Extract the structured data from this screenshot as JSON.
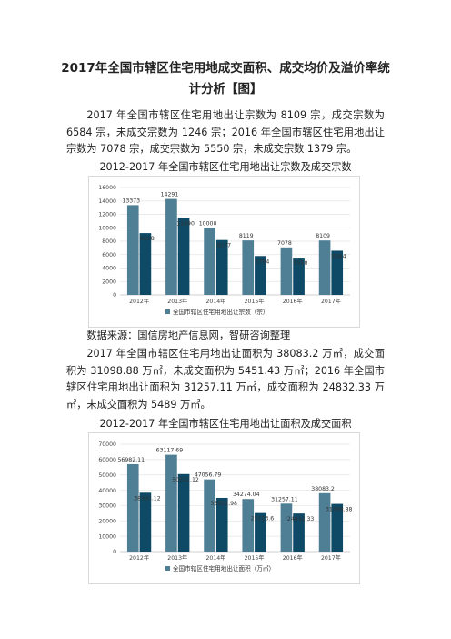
{
  "title_line1": "2017年全国市辖区住宅用地成交面积、成交均价及溢价率统",
  "title_line2": "计分析【图】",
  "para1": "2017 年全国市辖区住宅用地出让宗数为 8109 宗，成交宗数为 6584 宗，未成交宗数为 1246 宗；2016 年全国市辖区住宅用地出让宗数为 7078 宗，成交宗数为 5550 宗，未成交宗数 1379 宗。",
  "caption1": "2012-2017 年全国市辖区住宅用地出让宗数及成交宗数",
  "source": "数据来源：国信房地产信息网，智研咨询整理",
  "para2": "2017 年全国市辖区住宅用地出让面积为 38083.2 万㎡，成交面积为 31098.88 万㎡，未成交面积为 5451.43 万㎡；2016 年全国市辖区住宅用地出让面积为 31257.11 万㎡，成交面积为 24832.33 万㎡，未成交面积为 5489 万㎡。",
  "caption2": "2012-2017 年全国市辖区住宅用地出让面积及成交面积",
  "colors": {
    "series1": "#4f7f95",
    "series2": "#0e4a66"
  },
  "chart_data": [
    {
      "type": "bar",
      "categories": [
        "2012年",
        "2013年",
        "2014年",
        "2015年",
        "2016年",
        "2017年"
      ],
      "series": [
        {
          "name": "全国市辖区住宅用地出让宗数（宗）",
          "values": [
            13373,
            14291,
            10000,
            8119,
            7078,
            8109
          ],
          "labels": [
            "13373",
            "14291",
            "10000",
            "8119",
            "7078",
            "8109"
          ]
        },
        {
          "name": "",
          "values": [
            9208,
            11490,
            8177,
            5794,
            5550,
            6584
          ],
          "labels": [
            "9208",
            "11490",
            "8177",
            "5794",
            "5550",
            "6584"
          ]
        }
      ],
      "ylim": [
        0,
        16000
      ],
      "yticks": [
        "0",
        "2000",
        "4000",
        "6000",
        "8000",
        "10000",
        "12000",
        "14000",
        "16000"
      ],
      "legend_text": "全国市辖区住宅用地出让宗数（宗）",
      "legend_position": "bottom"
    },
    {
      "type": "bar",
      "categories": [
        "2012年",
        "2013年",
        "2014年",
        "2015年",
        "2016年",
        "2017年"
      ],
      "series": [
        {
          "name": "全国市辖区住宅用地出让面积（万㎡）",
          "values": [
            56982.11,
            63117.69,
            47056.79,
            34274.04,
            31257.11,
            38083.2
          ],
          "labels": [
            "56982.11",
            "63117.69",
            "47056.79",
            "34274.04",
            "31257.11",
            "38083.2"
          ]
        },
        {
          "name": "",
          "values": [
            38395.12,
            50551.12,
            35021.98,
            25123.6,
            24832.33,
            31098.88
          ],
          "labels": [
            "38395.12",
            "50551.12",
            "35021.98",
            "25123.6",
            "24832.33",
            "31098.88"
          ]
        }
      ],
      "ylim": [
        0,
        70000
      ],
      "yticks": [
        "0",
        "10000",
        "20000",
        "30000",
        "40000",
        "50000",
        "60000",
        "70000"
      ],
      "legend_text": "全国市辖区住宅用地出让面积（万㎡）",
      "legend_position": "bottom"
    }
  ]
}
